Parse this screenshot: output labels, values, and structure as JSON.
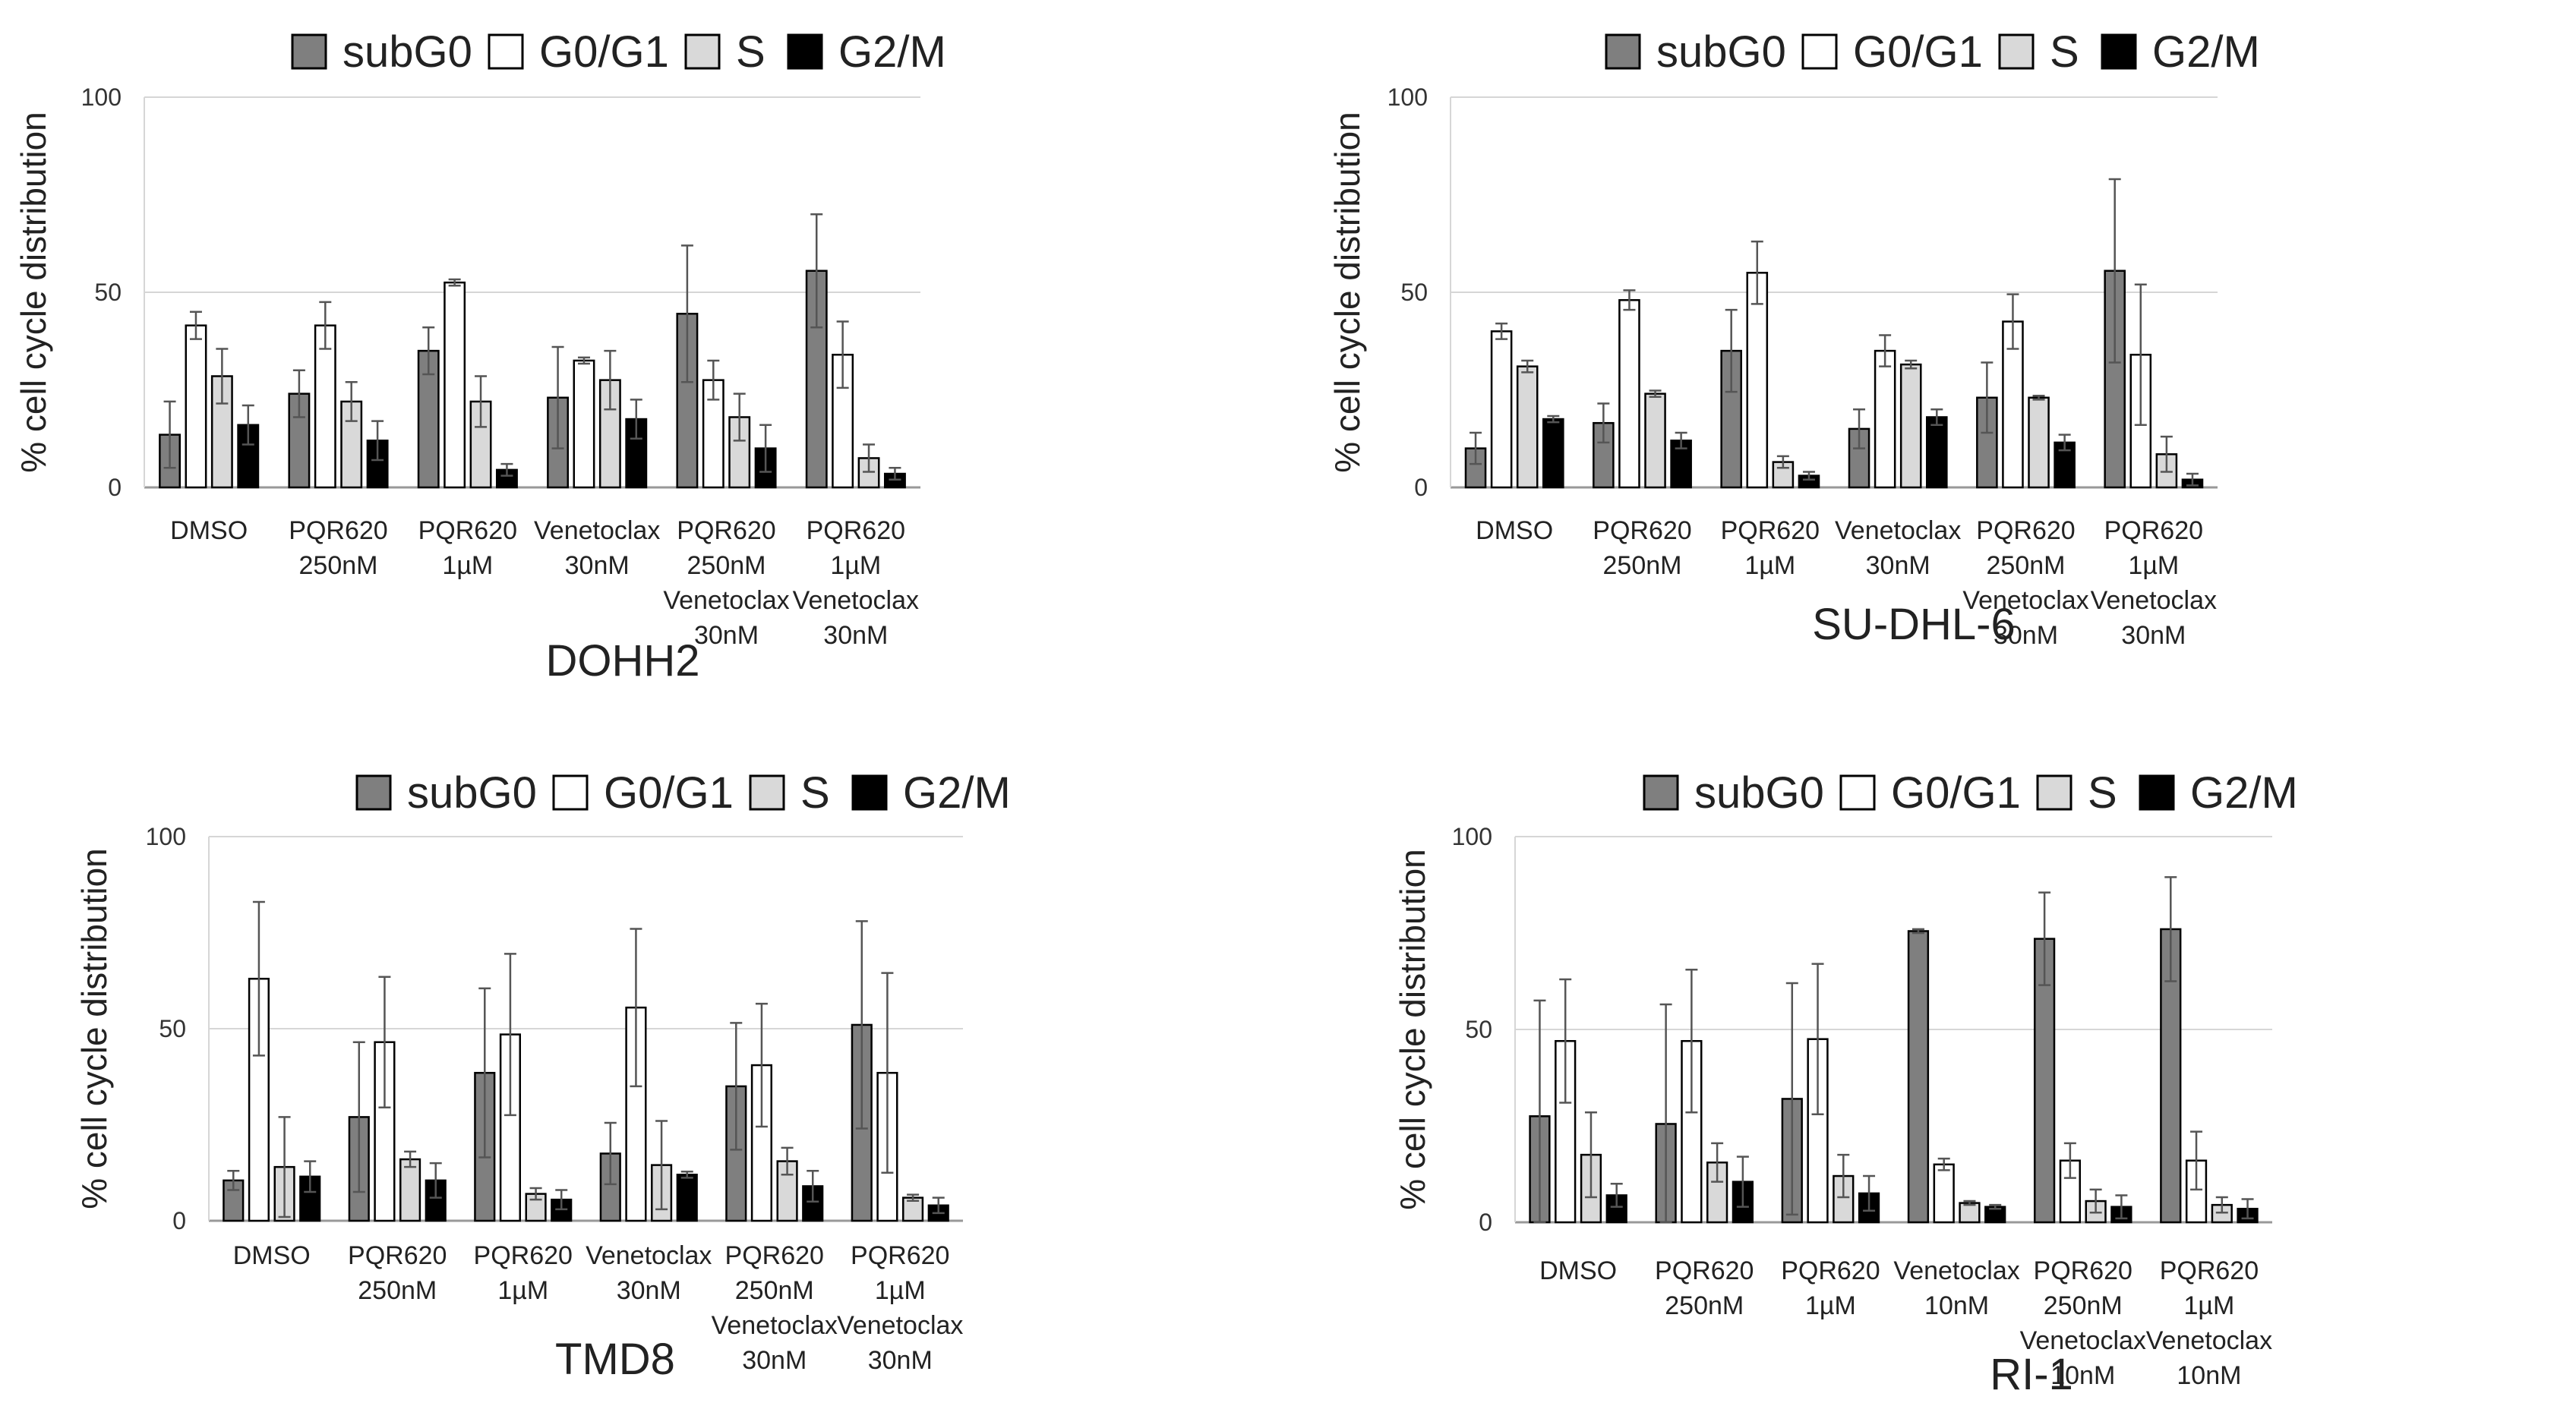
{
  "legend": {
    "items": [
      {
        "label": "subG0",
        "color": "#7f7f7f"
      },
      {
        "label": "G0/G1",
        "color": "#ffffff"
      },
      {
        "label": "S",
        "color": "#d9d9d9"
      },
      {
        "label": "G2/M",
        "color": "#000000"
      }
    ]
  },
  "chart_data": [
    {
      "type": "bar",
      "title": "DOHH2",
      "ylabel": "% cell cycle distribution",
      "ylim": [
        0,
        100
      ],
      "yticks": [
        "0",
        "50",
        "100"
      ],
      "grid": true,
      "legend_position": "top",
      "categories": [
        [
          "DMSO"
        ],
        [
          "PQR620",
          "250nM"
        ],
        [
          "PQR620",
          "1µM"
        ],
        [
          "Venetoclax",
          "30nM"
        ],
        [
          "PQR620",
          "250nM",
          "Venetoclax",
          "30nM"
        ],
        [
          "PQR620",
          "1µM",
          "Venetoclax",
          "30nM"
        ]
      ],
      "series": [
        {
          "name": "subG0",
          "values": [
            13.5,
            24,
            35,
            23,
            44.5,
            55.5
          ],
          "errors": [
            8.5,
            6,
            6,
            13,
            17.5,
            14.5
          ]
        },
        {
          "name": "G0/G1",
          "values": [
            41.5,
            41.5,
            52.5,
            32.5,
            27.5,
            34
          ],
          "errors": [
            3.5,
            6,
            0.8,
            0.8,
            5,
            8.5
          ]
        },
        {
          "name": "S",
          "values": [
            28.5,
            22,
            22,
            27.5,
            18,
            7.5
          ],
          "errors": [
            7,
            5,
            6.5,
            7.5,
            6,
            3.5
          ]
        },
        {
          "name": "G2/M",
          "values": [
            16,
            12,
            4.5,
            17.5,
            10,
            3.5
          ],
          "errors": [
            5,
            5,
            1.5,
            5,
            6,
            1.5
          ]
        }
      ]
    },
    {
      "type": "bar",
      "title": "SU-DHL-6",
      "ylabel": "% cell cycle distribution",
      "ylim": [
        0,
        100
      ],
      "yticks": [
        "0",
        "50",
        "100"
      ],
      "grid": true,
      "legend_position": "top",
      "categories": [
        [
          "DMSO"
        ],
        [
          "PQR620",
          "250nM"
        ],
        [
          "PQR620",
          "1µM"
        ],
        [
          "Venetoclax",
          "30nM"
        ],
        [
          "PQR620",
          "250nM",
          "Venetoclax",
          "30nM"
        ],
        [
          "PQR620",
          "1µM",
          "Venetoclax",
          "30nM"
        ]
      ],
      "series": [
        {
          "name": "subG0",
          "values": [
            10,
            16.5,
            35,
            15,
            23,
            55.5
          ],
          "errors": [
            4,
            5,
            10.5,
            5,
            9,
            23.5
          ]
        },
        {
          "name": "G0/G1",
          "values": [
            40,
            48,
            55,
            35,
            42.5,
            34
          ],
          "errors": [
            2,
            2.5,
            8,
            4,
            7,
            18
          ]
        },
        {
          "name": "S",
          "values": [
            31,
            24,
            6.5,
            31.5,
            23,
            8.5
          ],
          "errors": [
            1.5,
            0.8,
            1.5,
            1,
            0.5,
            4.5
          ]
        },
        {
          "name": "G2/M",
          "values": [
            17.5,
            12,
            3,
            18,
            11.5,
            2
          ],
          "errors": [
            0.8,
            2,
            1,
            2,
            2,
            1.5
          ]
        }
      ]
    },
    {
      "type": "bar",
      "title": "TMD8",
      "ylabel": "% cell cycle distribution",
      "ylim": [
        0,
        100
      ],
      "yticks": [
        "0",
        "50",
        "100"
      ],
      "grid": true,
      "legend_position": "top",
      "categories": [
        [
          "DMSO"
        ],
        [
          "PQR620",
          "250nM"
        ],
        [
          "PQR620",
          "1µM"
        ],
        [
          "Venetoclax",
          "30nM"
        ],
        [
          "PQR620",
          "250nM",
          "Venetoclax",
          "30nM"
        ],
        [
          "PQR620",
          "1µM",
          "Venetoclax",
          "30nM"
        ]
      ],
      "series": [
        {
          "name": "subG0",
          "values": [
            10.5,
            27,
            38.5,
            17.5,
            35,
            51
          ],
          "errors": [
            2.5,
            19.5,
            22,
            8,
            16.5,
            27
          ]
        },
        {
          "name": "G0/G1",
          "values": [
            63,
            46.5,
            48.5,
            55.5,
            40.5,
            38.5
          ],
          "errors": [
            20,
            17,
            21,
            20.5,
            16,
            26
          ]
        },
        {
          "name": "S",
          "values": [
            14,
            16,
            7,
            14.5,
            15.5,
            6
          ],
          "errors": [
            13,
            2,
            1.5,
            11.5,
            3.5,
            0.8
          ]
        },
        {
          "name": "G2/M",
          "values": [
            11.5,
            10.5,
            5.5,
            12,
            9,
            4
          ],
          "errors": [
            4,
            4.5,
            2.5,
            0.8,
            4,
            2
          ]
        }
      ]
    },
    {
      "type": "bar",
      "title": "RI-1",
      "ylabel": "% cell cycle distribution",
      "ylim": [
        0,
        100
      ],
      "yticks": [
        "0",
        "50",
        "100"
      ],
      "grid": true,
      "legend_position": "top",
      "categories": [
        [
          "DMSO"
        ],
        [
          "PQR620",
          "250nM"
        ],
        [
          "PQR620",
          "1µM"
        ],
        [
          "Venetoclax",
          "10nM"
        ],
        [
          "PQR620",
          "250nM",
          "Venetoclax",
          "10nM"
        ],
        [
          "PQR620",
          "1µM",
          "Venetoclax",
          "10nM"
        ]
      ],
      "series": [
        {
          "name": "subG0",
          "values": [
            27.5,
            25.5,
            32,
            75.5,
            73.5,
            76
          ],
          "errors": [
            30,
            31,
            30,
            0.5,
            12,
            13.5
          ]
        },
        {
          "name": "G0/G1",
          "values": [
            47,
            47,
            47.5,
            15,
            16,
            16
          ],
          "errors": [
            16,
            18.5,
            19.5,
            1.5,
            4.5,
            7.5
          ]
        },
        {
          "name": "S",
          "values": [
            17.5,
            15.5,
            12,
            5,
            5.5,
            4.5
          ],
          "errors": [
            11,
            5,
            5.5,
            0.5,
            3,
            2
          ]
        },
        {
          "name": "G2/M",
          "values": [
            7,
            10.5,
            7.5,
            4,
            4,
            3.5
          ],
          "errors": [
            3,
            6.5,
            4.5,
            0.5,
            3,
            2.5
          ]
        }
      ]
    }
  ]
}
